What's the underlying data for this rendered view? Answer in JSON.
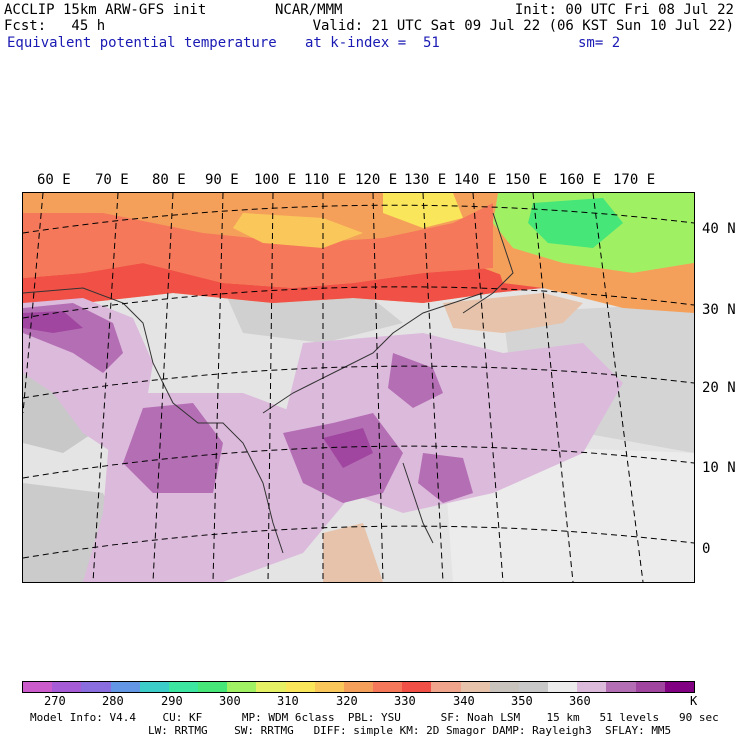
{
  "header": {
    "line1_left": "ACCLIP 15km ARW-GFS init",
    "line1_center": "NCAR/MMM",
    "line1_right": "Init: 00 UTC Fri 08 Jul 22",
    "line2_left": "Fcst:   45 h",
    "line2_right": "Valid: 21 UTC Sat 09 Jul 22 (06 KST Sun 10 Jul 22)",
    "line3_left": "Equivalent potential temperature",
    "line3_center": "at k-index =  51",
    "line3_right": "sm= 2"
  },
  "longitude_labels": [
    "60 E",
    "70 E",
    "80 E",
    "90 E",
    "100 E",
    "110 E",
    "120 E",
    "130 E",
    "140 E",
    "150 E",
    "160 E",
    "170 E"
  ],
  "latitude_labels": [
    "40 N",
    "30 N",
    "20 N",
    "10 N",
    "0"
  ],
  "colorbar": {
    "colors": [
      "#cc5ccc",
      "#a65cd6",
      "#8a6ee0",
      "#6496e6",
      "#3ccdc8",
      "#3ce6a0",
      "#46e678",
      "#a0f064",
      "#e6f064",
      "#fae65a",
      "#fac85a",
      "#f5a05a",
      "#f5785a",
      "#f05046",
      "#f0a48c",
      "#e6c3aa",
      "#c8c3bc",
      "#c8c8c8",
      "#ececec",
      "#dcbadc",
      "#b46eb4",
      "#a046a0",
      "#820082"
    ],
    "labels": [
      "270",
      "280",
      "290",
      "300",
      "310",
      "320",
      "330",
      "340",
      "350",
      "360",
      "K"
    ]
  },
  "footer": {
    "line1": "Model Info: V4.4    CU: KF      MP: WDM 6class  PBL: YSU      SF: Noah LSM    15 km   51 levels   90 sec",
    "line2": "LW: RRTMG    SW: RRTMG   DIFF: simple KM: 2D Smagor DAMP: Rayleigh3  SFLAY: MM5"
  },
  "map_colors": {
    "background_gray": "#e4e4e4",
    "light_gray": "#ececec",
    "mid_gray": "#c8c8c8",
    "red": "#f05046",
    "orange": "#f5785a",
    "light_orange": "#f5a05a",
    "yellow": "#fae65a",
    "green": "#46e678",
    "light_green": "#a0f064",
    "tan": "#e6c3aa",
    "light_purple": "#dcbadc",
    "purple": "#b46eb4",
    "dark_purple": "#a046a0"
  }
}
